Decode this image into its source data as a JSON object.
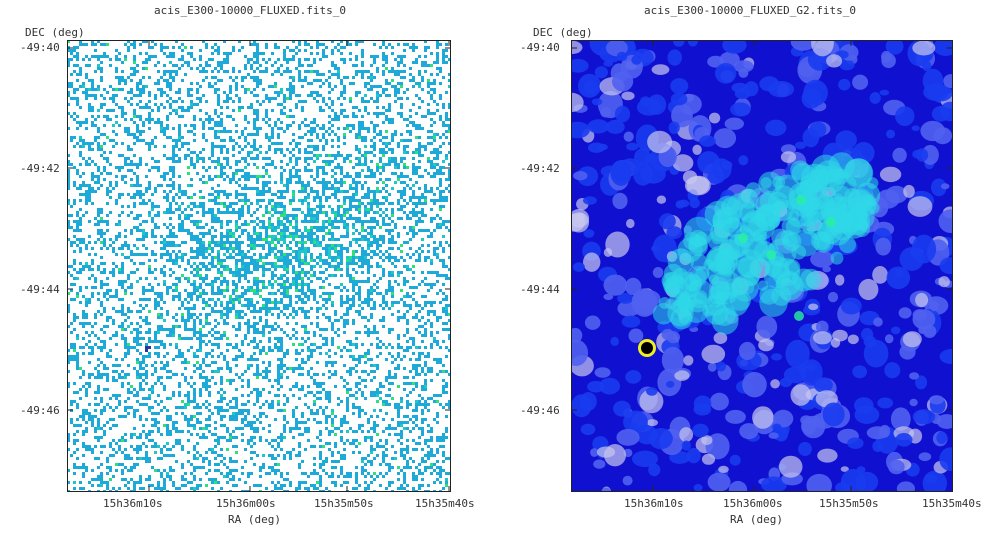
{
  "chart_data": [
    {
      "type": "heatmap",
      "title": "acis_E300-10000_FLUXED.fits_0",
      "xlabel": "RA (deg)",
      "ylabel": "DEC (deg)",
      "x_ticks": [
        "15h36m10s",
        "15h36m00s",
        "15h35m50s",
        "15h35m40s"
      ],
      "y_ticks": [
        "-49:40",
        "-49:42",
        "-49:44",
        "-49:46"
      ],
      "colormap": [
        "#ffffff",
        "#1eaad8",
        "#1ec8c8",
        "#2ee07a",
        "#1e3c9c"
      ],
      "style": "sparse-pixel-counts"
    },
    {
      "type": "heatmap",
      "title": "acis_E300-10000_FLUXED_G2.fits_0",
      "xlabel": "RA (deg)",
      "ylabel": "DEC (deg)",
      "x_ticks": [
        "15h36m10s",
        "15h36m00s",
        "15h35m50s",
        "15h35m40s"
      ],
      "y_ticks": [
        "-49:40",
        "-49:42",
        "-49:44",
        "-49:46"
      ],
      "colormap": [
        "#1010d0",
        "#1a3cf0",
        "#5060f0",
        "#c8c8f0",
        "#30d8e8",
        "#28f0a0",
        "#f0f020",
        "#000000"
      ],
      "style": "gaussian-smoothed"
    }
  ]
}
